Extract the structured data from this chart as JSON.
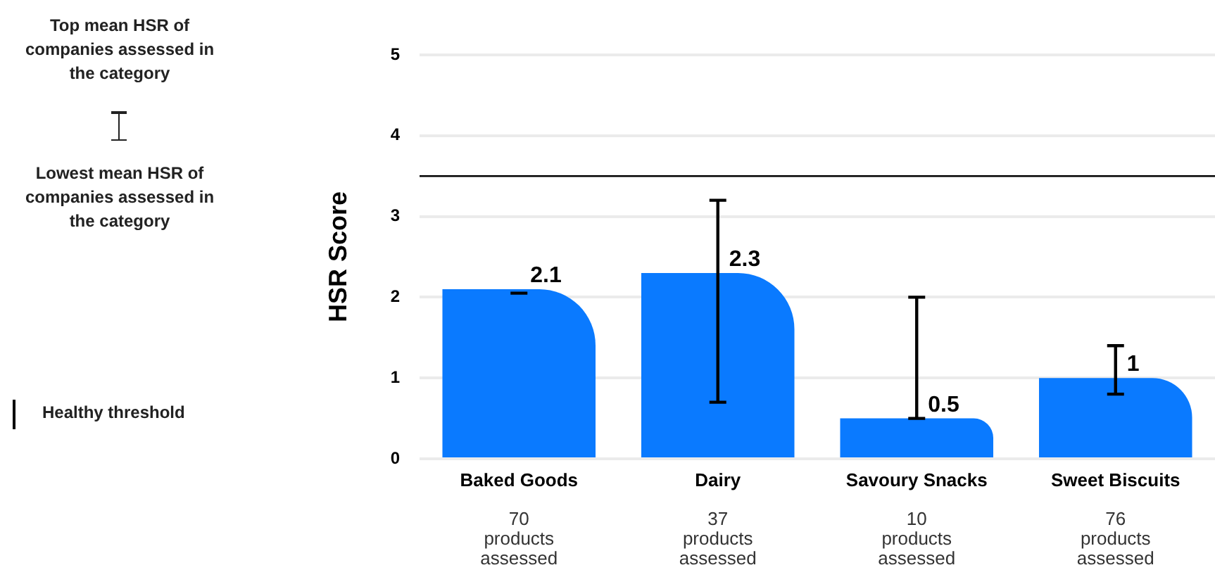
{
  "chart_data": {
    "type": "bar",
    "ylabel": "HSR Score",
    "categories": [
      "Baked Goods",
      "Dairy",
      "Savoury Snacks",
      "Sweet Biscuits"
    ],
    "values": [
      2.1,
      2.3,
      0.5,
      1
    ],
    "errors": [
      [
        2.05,
        2.05
      ],
      [
        0.7,
        3.2
      ],
      [
        0.5,
        2.0
      ],
      [
        0.8,
        1.4
      ]
    ],
    "color": "#0a7aff",
    "ylim": [
      0,
      5
    ],
    "yticks": [
      0,
      1,
      2,
      3,
      4,
      5
    ],
    "grid": "y",
    "data_labels": true,
    "ref_lines": [
      {
        "axis": "y",
        "value": 3.5,
        "label": "Healthy threshold",
        "color": "#000000"
      }
    ],
    "annotations": [
      "Top mean HSR of companies assessed in the category",
      "Lowest mean HSR of companies assessed in the category",
      "70 products assessed",
      "37 products assessed",
      "10 products assessed",
      "76 products assessed"
    ]
  }
}
